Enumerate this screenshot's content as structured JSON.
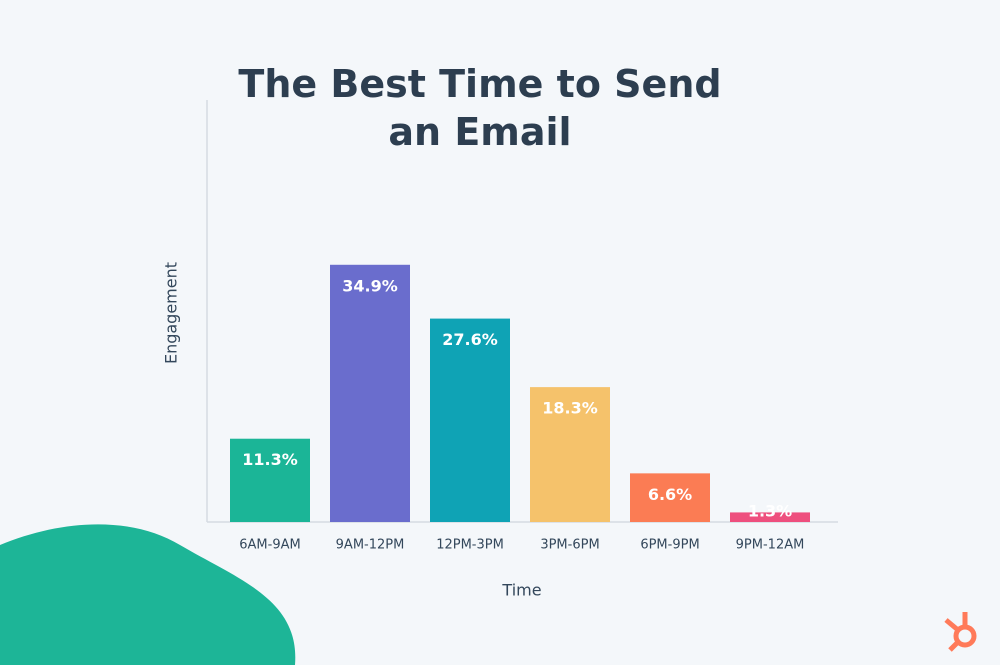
{
  "chart_data": {
    "type": "bar",
    "title": "The Best Time to Send an Email",
    "x_label": "Time",
    "y_label": "Engagement",
    "categories": [
      "6AM-9AM",
      "9AM-12PM",
      "12PM-3PM",
      "3PM-6PM",
      "6PM-9PM",
      "9PM-12AM"
    ],
    "values": [
      11.3,
      34.9,
      27.6,
      18.3,
      6.6,
      1.3
    ],
    "value_labels": [
      "11.3%",
      "34.9%",
      "27.6%",
      "18.3%",
      "6.6%",
      "1.3%"
    ],
    "colors": [
      "#1bb597",
      "#6a6dcd",
      "#0fa3b5",
      "#f5c26b",
      "#fb7c54",
      "#ee4f7e"
    ]
  }
}
